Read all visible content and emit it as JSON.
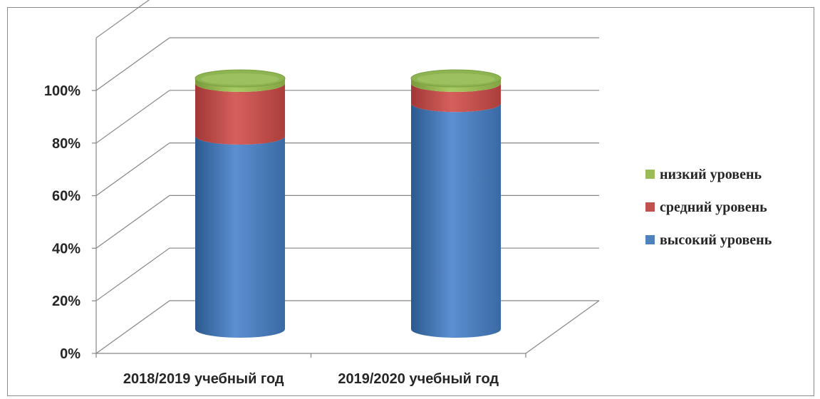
{
  "chart_data": {
    "type": "bar",
    "stacked": true,
    "percent_stacked": true,
    "style": "3d-cylinder",
    "categories": [
      "2018/2019 учебный год",
      "2019/2020 учебный год"
    ],
    "series": [
      {
        "name": "высокий уровень",
        "color": "#4f81bd",
        "values": [
          77,
          90
        ]
      },
      {
        "name": "средний уровень",
        "color": "#c0504d",
        "values": [
          21,
          8
        ]
      },
      {
        "name": "низкий уровень",
        "color": "#9bbb59",
        "values": [
          2,
          2
        ]
      }
    ],
    "y_ticks": [
      "0%",
      "20%",
      "40%",
      "60%",
      "80%",
      "100%"
    ],
    "ylim": [
      0,
      100
    ],
    "grid": true,
    "legend_position": "right"
  }
}
